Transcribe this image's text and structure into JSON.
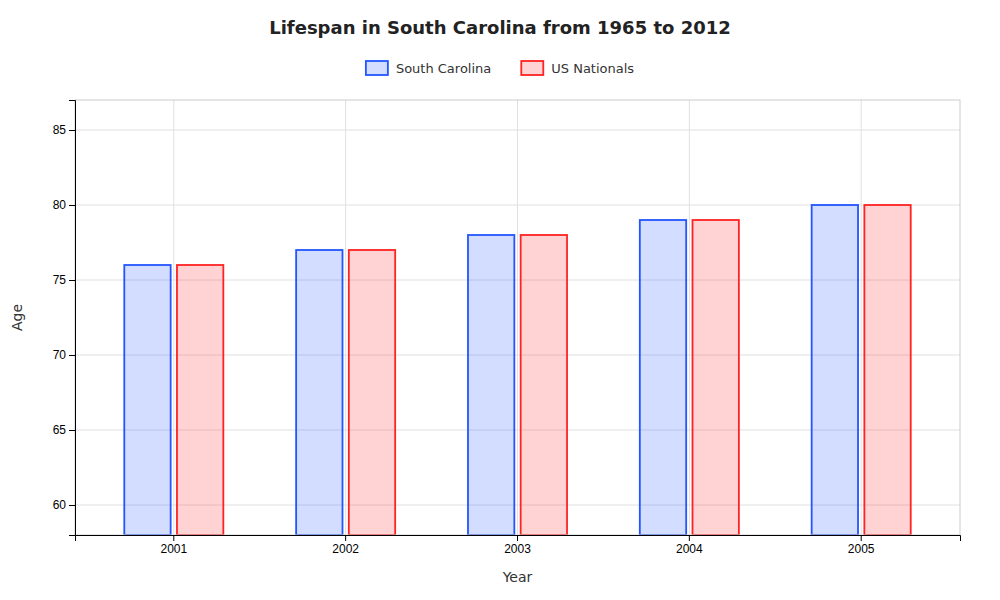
{
  "chart_data": {
    "type": "bar",
    "title": "Lifespan in South Carolina from 1965 to 2012",
    "xlabel": "Year",
    "ylabel": "Age",
    "categories": [
      "2001",
      "2002",
      "2003",
      "2004",
      "2005"
    ],
    "series": [
      {
        "name": "South Carolina",
        "color": "#2255ff",
        "values": [
          76,
          77,
          78,
          79,
          80
        ]
      },
      {
        "name": "US Nationals",
        "color": "#ff2222",
        "values": [
          76,
          77,
          78,
          79,
          80
        ]
      }
    ],
    "ylim": [
      58,
      87
    ],
    "yticks": [
      60,
      65,
      70,
      75,
      80,
      85
    ],
    "grid": true,
    "legend": "top"
  }
}
